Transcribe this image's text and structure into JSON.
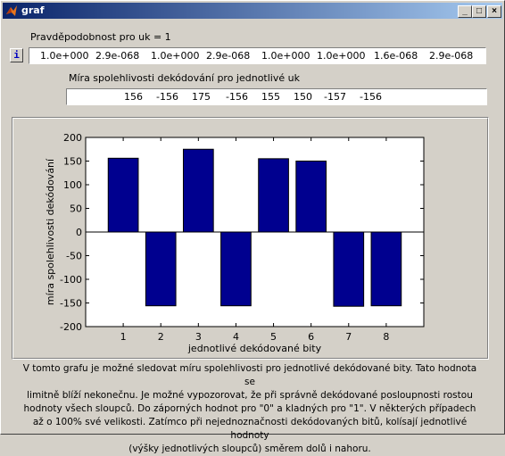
{
  "window": {
    "title": "graf"
  },
  "titlebar_buttons": {
    "minimize": "_",
    "maximize": "□",
    "close": "×"
  },
  "info_button": "i",
  "probability": {
    "label": "Pravděpodobnost pro uk = 1",
    "values": [
      "1.0e+000",
      "2.9e-068",
      "1.0e+000",
      "2.9e-068",
      "1.0e+000",
      "1.0e+000",
      "1.6e-068",
      "2.9e-068"
    ]
  },
  "reliability": {
    "label": "Míra spolehlivosti dekódování pro jednotlivé uk",
    "values": [
      "156",
      "-156",
      "175",
      "-156",
      "155",
      "150",
      "-157",
      "-156"
    ]
  },
  "chart_data": {
    "type": "bar",
    "categories": [
      "1",
      "2",
      "3",
      "4",
      "5",
      "6",
      "7",
      "8"
    ],
    "values": [
      156,
      -156,
      175,
      -156,
      155,
      150,
      -157,
      -156
    ],
    "xlabel": "jednotlivé dekódované bity",
    "ylabel": "míra spolehlivosti dekódování",
    "ylim": [
      -200,
      200
    ],
    "yticks": [
      -200,
      -150,
      -100,
      -50,
      0,
      50,
      100,
      150,
      200
    ],
    "bar_color": "#00008f",
    "grid": false
  },
  "description": [
    "V tomto grafu je možné sledovat míru spolehlivosti pro jednotlivé dekódované bity. Tato hodnota se",
    "limitně blíží nekonečnu. Je možné vypozorovat, že při správně dekódované posloupnosti rostou",
    "hodnoty všech sloupců. Do záporných hodnot pro \"0\" a kladných pro \"1\". V některých případech",
    "až o 100% své velikosti. Zatímco při nejednoznačnosti dekódovaných bitů, kolísají jednotlivé hodnoty",
    "(výšky jednotlivých sloupců) směrem dolů i nahoru."
  ]
}
